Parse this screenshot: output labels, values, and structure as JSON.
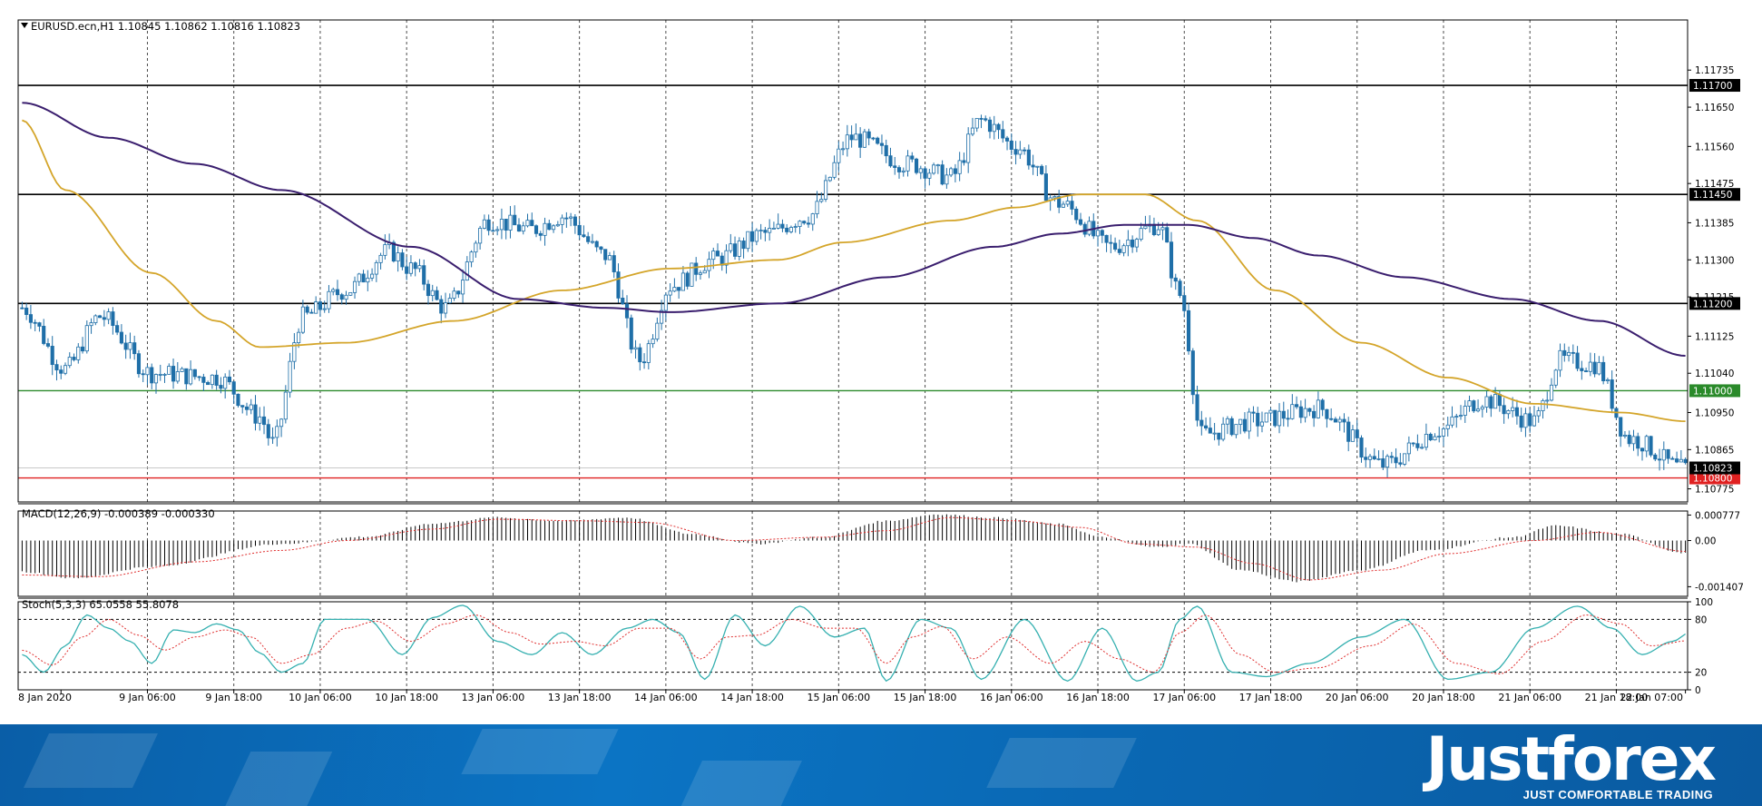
{
  "header": {
    "symbol_line": "EURUSD.ecn,H1  1.10845 1.10862 1.10816 1.10823"
  },
  "colors": {
    "bull_candle": "#ffffff",
    "bear_candle": "#1f6fa8",
    "ma_fast": "#d4a52a",
    "ma_slow": "#3a1e6e",
    "level_black": "#000000",
    "level_green": "#2a8a2a",
    "level_red": "#e02020",
    "stoch_main": "#35b0b0",
    "stoch_signal": "#e03030",
    "banner": "#0b6bb8"
  },
  "chart_data": [
    {
      "type": "candlestick",
      "panel": "price",
      "symbol": "EURUSD.ecn",
      "timeframe": "H1",
      "ohlc_last": {
        "open": 1.10845,
        "high": 1.10862,
        "low": 1.10816,
        "close": 1.10823
      },
      "ylim": [
        1.10745,
        1.11775
      ],
      "y_tick_labels": [
        "1.11735",
        "1.11650",
        "1.11560",
        "1.11475",
        "1.11385",
        "1.11300",
        "1.11215",
        "1.11125",
        "1.11040",
        "1.10950",
        "1.10865",
        "1.10775"
      ],
      "x_tick_labels": [
        "8 Jan 2020",
        "9 Jan 06:00",
        "9 Jan 18:00",
        "10 Jan 06:00",
        "10 Jan 18:00",
        "13 Jan 06:00",
        "13 Jan 18:00",
        "14 Jan 06:00",
        "14 Jan 18:00",
        "15 Jan 06:00",
        "15 Jan 18:00",
        "16 Jan 06:00",
        "16 Jan 18:00",
        "17 Jan 06:00",
        "17 Jan 18:00",
        "20 Jan 06:00",
        "20 Jan 18:00",
        "21 Jan 06:00",
        "21 Jan 18:00",
        "22 Jan 07:00"
      ],
      "horizontal_levels": [
        {
          "price": 1.117,
          "label": "1.11700",
          "color": "black"
        },
        {
          "price": 1.1145,
          "label": "1.11450",
          "color": "black"
        },
        {
          "price": 1.112,
          "label": "1.11200",
          "color": "black"
        },
        {
          "price": 1.11,
          "label": "1.11000",
          "color": "green"
        },
        {
          "price": 1.108,
          "label": "1.10800",
          "color": "red"
        }
      ],
      "current_price": {
        "price": 1.10823,
        "label": "1.10823"
      },
      "close_anchors": [
        [
          0,
          1.1119
        ],
        [
          10,
          1.1105
        ],
        [
          18,
          1.1117
        ],
        [
          30,
          1.1104
        ],
        [
          45,
          1.1103
        ],
        [
          55,
          1.1094
        ],
        [
          58,
          1.1088
        ],
        [
          65,
          1.1117
        ],
        [
          75,
          1.1123
        ],
        [
          85,
          1.1132
        ],
        [
          90,
          1.1128
        ],
        [
          98,
          1.1119
        ],
        [
          108,
          1.1139
        ],
        [
          118,
          1.1137
        ],
        [
          125,
          1.114
        ],
        [
          135,
          1.1131
        ],
        [
          143,
          1.1107
        ],
        [
          150,
          1.1124
        ],
        [
          160,
          1.113
        ],
        [
          172,
          1.1136
        ],
        [
          182,
          1.114
        ],
        [
          192,
          1.1158
        ],
        [
          205,
          1.1152
        ],
        [
          215,
          1.1149
        ],
        [
          222,
          1.1162
        ],
        [
          230,
          1.1156
        ],
        [
          240,
          1.1143
        ],
        [
          252,
          1.1133
        ],
        [
          263,
          1.1138
        ],
        [
          268,
          1.1122
        ],
        [
          273,
          1.109
        ],
        [
          285,
          1.1093
        ],
        [
          300,
          1.1096
        ],
        [
          315,
          1.1083
        ],
        [
          328,
          1.1091
        ],
        [
          338,
          1.1098
        ],
        [
          350,
          1.1093
        ],
        [
          356,
          1.1107
        ],
        [
          364,
          1.1106
        ],
        [
          372,
          1.1089
        ],
        [
          385,
          1.1082
        ]
      ],
      "ma_fast_anchors": [
        [
          0,
          1.1162
        ],
        [
          10,
          1.1146
        ],
        [
          30,
          1.1127
        ],
        [
          45,
          1.1116
        ],
        [
          55,
          1.111
        ],
        [
          75,
          1.1111
        ],
        [
          100,
          1.1116
        ],
        [
          125,
          1.1123
        ],
        [
          150,
          1.1128
        ],
        [
          175,
          1.113
        ],
        [
          190,
          1.1134
        ],
        [
          215,
          1.1139
        ],
        [
          230,
          1.1142
        ],
        [
          245,
          1.1145
        ],
        [
          260,
          1.1145
        ],
        [
          272,
          1.1139
        ],
        [
          290,
          1.1123
        ],
        [
          310,
          1.1111
        ],
        [
          330,
          1.1103
        ],
        [
          350,
          1.1097
        ],
        [
          370,
          1.1095
        ],
        [
          385,
          1.1093
        ]
      ],
      "ma_slow_anchors": [
        [
          0,
          1.1166
        ],
        [
          20,
          1.1158
        ],
        [
          40,
          1.1152
        ],
        [
          60,
          1.1146
        ],
        [
          90,
          1.1133
        ],
        [
          115,
          1.1121
        ],
        [
          135,
          1.1119
        ],
        [
          150,
          1.1118
        ],
        [
          175,
          1.112
        ],
        [
          200,
          1.1126
        ],
        [
          225,
          1.1133
        ],
        [
          240,
          1.1136
        ],
        [
          255,
          1.1138
        ],
        [
          270,
          1.1138
        ],
        [
          285,
          1.1135
        ],
        [
          300,
          1.1131
        ],
        [
          320,
          1.1126
        ],
        [
          345,
          1.1121
        ],
        [
          365,
          1.1116
        ],
        [
          385,
          1.1108
        ]
      ]
    },
    {
      "type": "histogram",
      "panel": "macd",
      "title": "MACD(12,26,9) -0.000389 -0.000330",
      "macd": -0.000389,
      "signal": -0.00033,
      "ylim": [
        -0.0017,
        0.0009
      ],
      "y_tick_labels": [
        "0.000777",
        "0.00",
        "-0.001407"
      ],
      "hist_anchors": [
        [
          0,
          -0.00095
        ],
        [
          12,
          -0.00115
        ],
        [
          30,
          -0.0008
        ],
        [
          60,
          -0.0001
        ],
        [
          80,
          0.00012
        ],
        [
          95,
          0.00052
        ],
        [
          110,
          0.0007
        ],
        [
          125,
          0.0006
        ],
        [
          140,
          0.0007
        ],
        [
          155,
          0.0002
        ],
        [
          170,
          -0.0001
        ],
        [
          185,
          0.0001
        ],
        [
          200,
          0.0006
        ],
        [
          212,
          0.0008
        ],
        [
          225,
          0.0007
        ],
        [
          240,
          0.0005
        ],
        [
          250,
          0.0001
        ],
        [
          262,
          -0.0002
        ],
        [
          270,
          -0.0001
        ],
        [
          282,
          -0.0009
        ],
        [
          295,
          -0.00125
        ],
        [
          310,
          -0.0009
        ],
        [
          325,
          -0.0003
        ],
        [
          345,
          0.0001
        ],
        [
          355,
          0.00045
        ],
        [
          370,
          0.0002
        ],
        [
          385,
          -0.00039
        ]
      ],
      "signal_anchors": [
        [
          0,
          -0.00105
        ],
        [
          18,
          -0.0011
        ],
        [
          40,
          -0.00065
        ],
        [
          60,
          -0.0003
        ],
        [
          75,
          0.0
        ],
        [
          95,
          0.00035
        ],
        [
          110,
          0.00065
        ],
        [
          130,
          0.0006
        ],
        [
          145,
          0.00055
        ],
        [
          165,
          0.0
        ],
        [
          185,
          0.0001
        ],
        [
          200,
          0.0003
        ],
        [
          215,
          0.0007
        ],
        [
          230,
          0.0006
        ],
        [
          245,
          0.0004
        ],
        [
          258,
          -0.0001
        ],
        [
          272,
          -0.0002
        ],
        [
          285,
          -0.0007
        ],
        [
          298,
          -0.0012
        ],
        [
          315,
          -0.0009
        ],
        [
          330,
          -0.0004
        ],
        [
          350,
          0.0
        ],
        [
          365,
          0.00025
        ],
        [
          385,
          -0.00033
        ]
      ]
    },
    {
      "type": "line",
      "panel": "stochastic",
      "title": "Stoch(5,3,3) 65.0558 55.8078",
      "main": 65.0558,
      "signal": 55.8078,
      "ylim": [
        0,
        100
      ],
      "y_tick_labels": [
        "100",
        "80",
        "20",
        "0"
      ],
      "levels": [
        80,
        20
      ],
      "main_anchors": [
        [
          0,
          40
        ],
        [
          5,
          20
        ],
        [
          10,
          50
        ],
        [
          15,
          85
        ],
        [
          20,
          70
        ],
        [
          25,
          55
        ],
        [
          30,
          30
        ],
        [
          35,
          68
        ],
        [
          40,
          65
        ],
        [
          45,
          75
        ],
        [
          50,
          68
        ],
        [
          55,
          42
        ],
        [
          60,
          20
        ],
        [
          65,
          30
        ],
        [
          70,
          80
        ],
        [
          80,
          80
        ],
        [
          88,
          40
        ],
        [
          95,
          82
        ],
        [
          102,
          96
        ],
        [
          110,
          55
        ],
        [
          118,
          40
        ],
        [
          125,
          65
        ],
        [
          132,
          40
        ],
        [
          140,
          70
        ],
        [
          146,
          80
        ],
        [
          152,
          65
        ],
        [
          158,
          12
        ],
        [
          165,
          85
        ],
        [
          172,
          50
        ],
        [
          180,
          95
        ],
        [
          188,
          60
        ],
        [
          195,
          70
        ],
        [
          200,
          10
        ],
        [
          208,
          80
        ],
        [
          215,
          70
        ],
        [
          222,
          12
        ],
        [
          232,
          80
        ],
        [
          242,
          10
        ],
        [
          250,
          70
        ],
        [
          258,
          10
        ],
        [
          263,
          20
        ],
        [
          268,
          80
        ],
        [
          272,
          95
        ],
        [
          280,
          20
        ],
        [
          288,
          15
        ],
        [
          298,
          30
        ],
        [
          310,
          60
        ],
        [
          320,
          80
        ],
        [
          330,
          12
        ],
        [
          340,
          20
        ],
        [
          350,
          70
        ],
        [
          360,
          95
        ],
        [
          368,
          70
        ],
        [
          375,
          40
        ],
        [
          382,
          55
        ],
        [
          386,
          65
        ]
      ],
      "signal_anchors": [
        [
          0,
          45
        ],
        [
          7,
          28
        ],
        [
          14,
          60
        ],
        [
          20,
          80
        ],
        [
          27,
          62
        ],
        [
          33,
          45
        ],
        [
          40,
          60
        ],
        [
          47,
          68
        ],
        [
          53,
          60
        ],
        [
          60,
          30
        ],
        [
          67,
          40
        ],
        [
          75,
          70
        ],
        [
          82,
          78
        ],
        [
          90,
          55
        ],
        [
          98,
          75
        ],
        [
          105,
          85
        ],
        [
          113,
          65
        ],
        [
          120,
          52
        ],
        [
          128,
          55
        ],
        [
          135,
          50
        ],
        [
          143,
          70
        ],
        [
          150,
          70
        ],
        [
          157,
          35
        ],
        [
          163,
          60
        ],
        [
          170,
          62
        ],
        [
          178,
          80
        ],
        [
          186,
          70
        ],
        [
          193,
          70
        ],
        [
          200,
          30
        ],
        [
          206,
          60
        ],
        [
          213,
          72
        ],
        [
          220,
          35
        ],
        [
          228,
          60
        ],
        [
          238,
          30
        ],
        [
          246,
          55
        ],
        [
          254,
          35
        ],
        [
          262,
          20
        ],
        [
          268,
          65
        ],
        [
          274,
          85
        ],
        [
          282,
          40
        ],
        [
          290,
          20
        ],
        [
          300,
          25
        ],
        [
          312,
          50
        ],
        [
          322,
          75
        ],
        [
          332,
          30
        ],
        [
          342,
          18
        ],
        [
          352,
          55
        ],
        [
          362,
          85
        ],
        [
          370,
          75
        ],
        [
          377,
          50
        ],
        [
          386,
          56
        ]
      ]
    }
  ]
}
